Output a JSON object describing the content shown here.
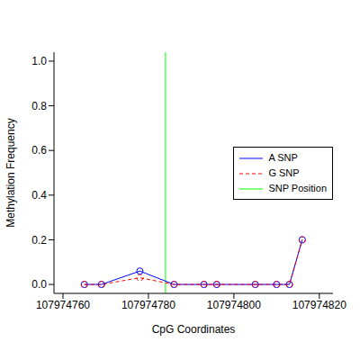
{
  "chart_data": {
    "type": "line",
    "x_label": "CpG Coordinates",
    "y_label": "Methylation Frequency",
    "x": [
      107974765,
      107974769,
      107974778,
      107974786,
      107974793,
      107974796,
      107974805,
      107974810,
      107974813,
      107974816
    ],
    "series": [
      {
        "name": "A SNP",
        "color": "#0000ff",
        "marker": "open_circle",
        "line_style": "solid",
        "values": [
          0,
          0,
          0.06,
          0,
          0,
          0,
          0,
          0,
          0,
          0.2
        ]
      },
      {
        "name": "G SNP",
        "color": "#ff0000",
        "marker": "open_circle",
        "line_style": "dashed",
        "values": [
          0,
          0,
          0.03,
          0,
          0,
          0,
          0,
          0,
          0,
          0.2
        ]
      }
    ],
    "vline": {
      "name": "SNP Position",
      "x": 107974784,
      "color": "#00ff00"
    },
    "xlim": [
      107974757.9,
      107974823.2
    ],
    "xticks": [
      107974760,
      107974780,
      107974800,
      107974820
    ],
    "ylim": [
      -0.04,
      1.04
    ],
    "yticks": [
      {
        "value": 0,
        "label": "0.0"
      },
      0.2,
      0.4,
      0.6,
      0.8,
      {
        "value": 1,
        "label": "1.0"
      }
    ],
    "legend": "right"
  }
}
